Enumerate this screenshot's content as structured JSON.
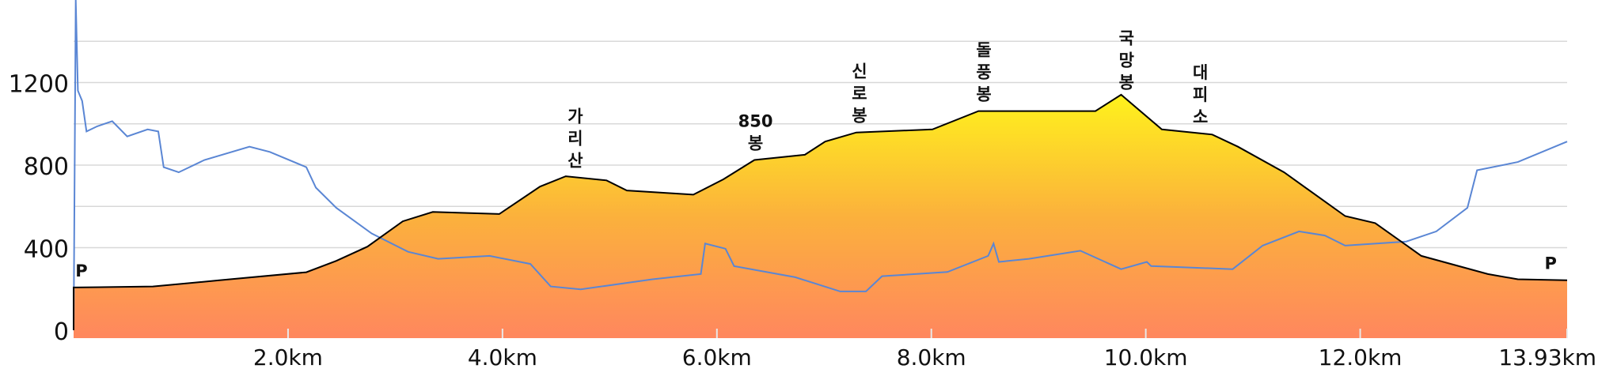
{
  "chart_data": {
    "type": "area",
    "xlim": [
      0,
      13.93
    ],
    "ylim": [
      0,
      1600
    ],
    "yticks": [
      0,
      400,
      800,
      1200
    ],
    "minor_yticks": [
      200,
      600,
      1000,
      1400
    ],
    "xticks": [
      {
        "value": 2,
        "label": "2.0km"
      },
      {
        "value": 4,
        "label": "4.0km"
      },
      {
        "value": 6,
        "label": "6.0km"
      },
      {
        "value": 8,
        "label": "8.0km"
      },
      {
        "value": 10,
        "label": "10.0km"
      },
      {
        "value": 12,
        "label": "12.0km"
      },
      {
        "value": 13.93,
        "label": "13.93km"
      }
    ],
    "grid": true,
    "color": "#000000",
    "gradient": [
      "#fff21c",
      "#fbb13c",
      "#ff875e"
    ],
    "x": [
      0,
      0.74,
      1.36,
      2.17,
      2.45,
      2.74,
      3.07,
      3.35,
      3.97,
      4.35,
      4.59,
      4.97,
      5.16,
      5.78,
      6.06,
      6.35,
      6.82,
      7.01,
      7.3,
      8.01,
      8.44,
      8.82,
      9.53,
      9.77,
      10.15,
      10.62,
      10.86,
      11.29,
      11.86,
      12.14,
      12.57,
      13.19,
      13.47,
      13.93
    ],
    "values": [
      207,
      212,
      242,
      281,
      336,
      405,
      528,
      573,
      563,
      696,
      746,
      726,
      677,
      657,
      731,
      825,
      850,
      914,
      958,
      973,
      1062,
      1062,
      1062,
      1141,
      973,
      948,
      889,
      765,
      553,
      519,
      360,
      272,
      247,
      242
    ],
    "line": {
      "color": "#5a86d4",
      "x": [
        0,
        0.02,
        0.04,
        0.08,
        0.12,
        0.22,
        0.36,
        0.5,
        0.69,
        0.79,
        0.84,
        0.98,
        1.22,
        1.64,
        1.83,
        2.17,
        2.26,
        2.45,
        2.78,
        3.12,
        3.4,
        3.88,
        4.26,
        4.45,
        4.73,
        5.4,
        5.85,
        5.89,
        6.08,
        6.16,
        6.73,
        7.15,
        7.39,
        7.54,
        8.15,
        8.53,
        8.58,
        8.63,
        8.91,
        9.39,
        9.77,
        10.01,
        10.05,
        10.81,
        11.09,
        11.43,
        11.67,
        11.86,
        12.43,
        12.71,
        13.0,
        13.09,
        13.47,
        13.93
      ],
      "values": [
        0,
        1600,
        1161,
        1111,
        963,
        988,
        1013,
        939,
        973,
        963,
        790,
        765,
        825,
        889,
        864,
        790,
        691,
        593,
        469,
        380,
        346,
        360,
        321,
        212,
        198,
        247,
        272,
        420,
        395,
        311,
        257,
        188,
        188,
        262,
        282,
        360,
        420,
        331,
        346,
        385,
        296,
        331,
        311,
        296,
        410,
        479,
        459,
        410,
        430,
        479,
        593,
        775,
        815,
        914
      ]
    },
    "annotations": [
      {
        "x": 0,
        "lines": [
          "P"
        ]
      },
      {
        "x": 4.68,
        "lines": [
          "가",
          "리",
          "산"
        ]
      },
      {
        "x": 6.36,
        "lines": [
          "850",
          "봉"
        ]
      },
      {
        "x": 7.33,
        "lines": [
          "신",
          "로",
          "봉"
        ]
      },
      {
        "x": 8.49,
        "lines": [
          "돌",
          "풍",
          "봉"
        ]
      },
      {
        "x": 9.82,
        "lines": [
          "국",
          "망",
          "봉"
        ]
      },
      {
        "x": 10.51,
        "lines": [
          "대",
          "피",
          "소"
        ]
      },
      {
        "x": 13.85,
        "lines": [
          "P"
        ]
      }
    ]
  }
}
